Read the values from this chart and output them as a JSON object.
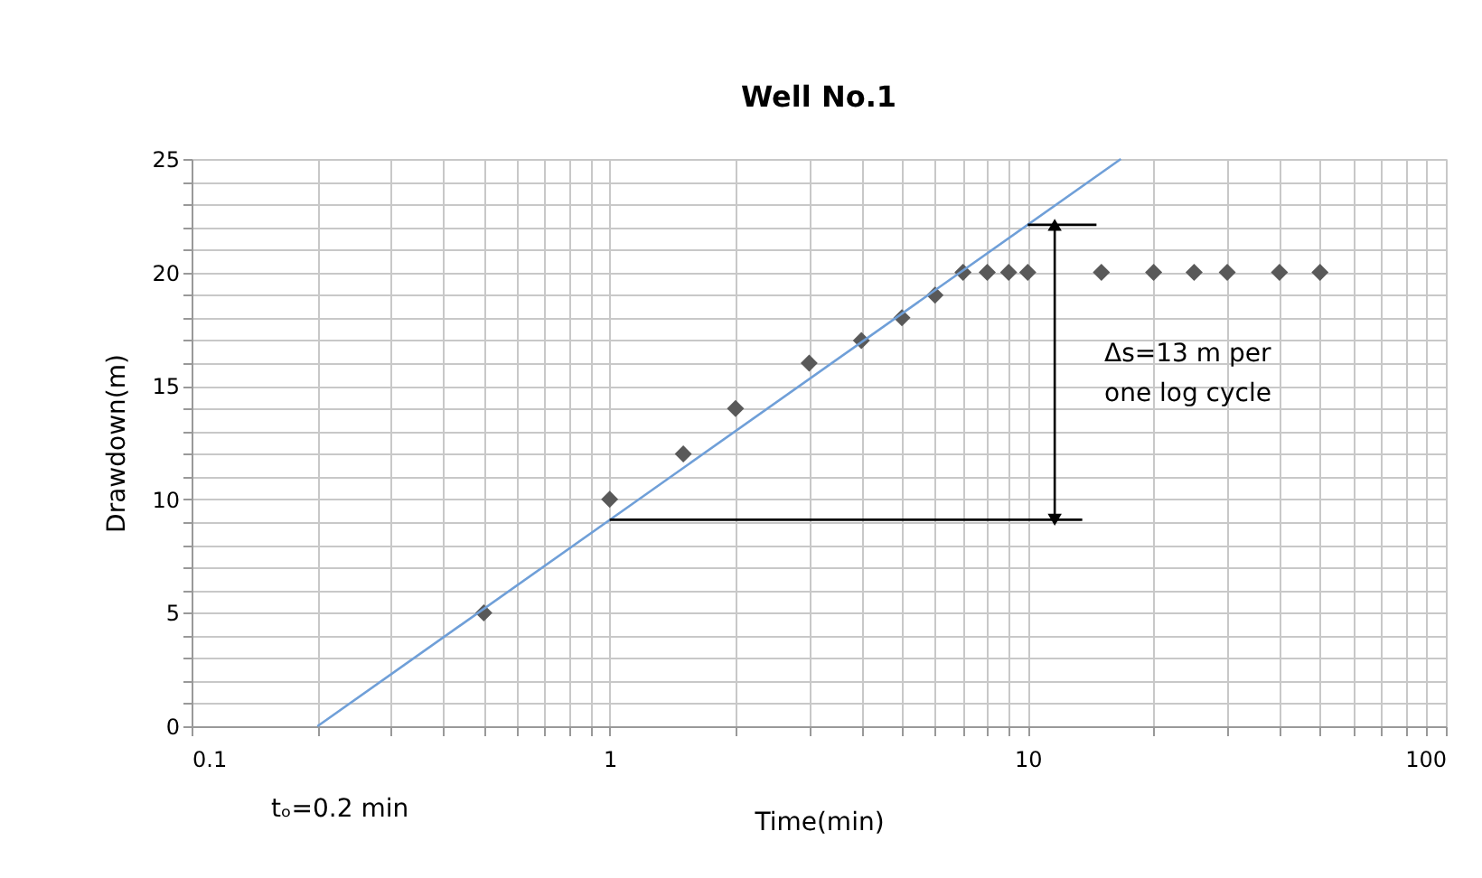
{
  "chart_data": {
    "type": "scatter",
    "title": "Well No.1",
    "xlabel": "Time(min)",
    "ylabel": "Drawdown(m)",
    "log": "x",
    "grid": true,
    "marker": "diamond",
    "xlim": [
      0.1,
      100
    ],
    "ylim": [
      0,
      25
    ],
    "xticks": [
      0.1,
      {
        "value": 0.2,
        "label": null
      },
      {
        "value": 0.3,
        "label": null
      },
      {
        "value": 0.4,
        "label": null
      },
      {
        "value": 0.5,
        "label": null
      },
      {
        "value": 0.6,
        "label": null
      },
      {
        "value": 0.7,
        "label": null
      },
      {
        "value": 0.8,
        "label": null
      },
      {
        "value": 0.9,
        "label": null
      },
      1,
      {
        "value": 2,
        "label": null
      },
      {
        "value": 3,
        "label": null
      },
      {
        "value": 4,
        "label": null
      },
      {
        "value": 5,
        "label": null
      },
      {
        "value": 6,
        "label": null
      },
      {
        "value": 7,
        "label": null
      },
      {
        "value": 8,
        "label": null
      },
      {
        "value": 9,
        "label": null
      },
      10,
      {
        "value": 20,
        "label": null
      },
      {
        "value": 30,
        "label": null
      },
      {
        "value": 40,
        "label": null
      },
      {
        "value": 50,
        "label": null
      },
      {
        "value": 60,
        "label": null
      },
      {
        "value": 70,
        "label": null
      },
      {
        "value": 80,
        "label": null
      },
      {
        "value": 90,
        "label": null
      },
      100
    ],
    "yticks": [
      0,
      {
        "value": 1,
        "label": null
      },
      {
        "value": 2,
        "label": null
      },
      {
        "value": 3,
        "label": null
      },
      {
        "value": 4,
        "label": null
      },
      5,
      {
        "value": 6,
        "label": null
      },
      {
        "value": 7,
        "label": null
      },
      {
        "value": 8,
        "label": null
      },
      {
        "value": 9,
        "label": null
      },
      10,
      {
        "value": 11,
        "label": null
      },
      {
        "value": 12,
        "label": null
      },
      {
        "value": 13,
        "label": null
      },
      {
        "value": 14,
        "label": null
      },
      15,
      {
        "value": 16,
        "label": null
      },
      {
        "value": 17,
        "label": null
      },
      {
        "value": 18,
        "label": null
      },
      {
        "value": 19,
        "label": null
      },
      20,
      {
        "value": 21,
        "label": null
      },
      {
        "value": 22,
        "label": null
      },
      {
        "value": 23,
        "label": null
      },
      {
        "value": 24,
        "label": null
      },
      25
    ],
    "series": [
      {
        "color": "#595959",
        "x": [
          0.5,
          1,
          1.5,
          2,
          3,
          4,
          5,
          6,
          7,
          8,
          9,
          10,
          15,
          20,
          25,
          30,
          40,
          50
        ],
        "values": [
          5,
          10,
          12,
          14,
          16,
          17,
          18,
          19,
          20,
          20,
          20,
          20,
          20,
          20,
          20,
          20,
          20,
          20
        ]
      },
      {
        "type": "line",
        "color": "#6f9fd8",
        "marker": "none",
        "x": [
          0.2,
          16.7
        ],
        "values": [
          0,
          25
        ]
      },
      {
        "type": "line",
        "color": "#000000",
        "marker": "none",
        "x": [
          1,
          13.5
        ],
        "values": [
          9.1,
          9.1
        ]
      },
      {
        "type": "line",
        "color": "#000000",
        "marker": "none",
        "x": [
          10,
          14.6
        ],
        "values": [
          22.1,
          22.1
        ]
      },
      {
        "type": "line",
        "color": "#000000",
        "marker": "triangle",
        "x": [
          11.6,
          11.6
        ],
        "values": [
          9.1,
          22.1
        ]
      }
    ],
    "annotations": [
      "Δs=13 m per\none log cycle",
      "tₒ=0.2 min"
    ]
  }
}
